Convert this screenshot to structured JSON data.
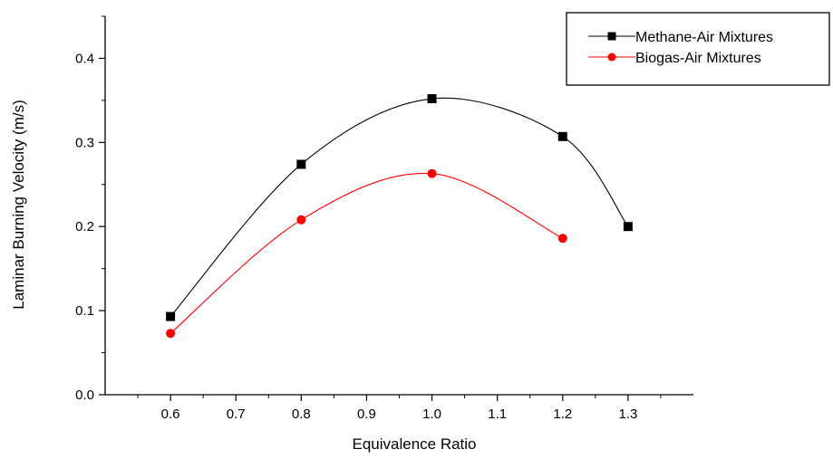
{
  "chart_data": {
    "type": "line",
    "title": "",
    "xlabel": "Equivalence Ratio",
    "ylabel": "Laminar Burning Velocity (m/s)",
    "xlim": [
      0.5,
      1.4
    ],
    "ylim": [
      0.0,
      0.45
    ],
    "x_ticks": [
      0.6,
      0.7,
      0.8,
      0.9,
      1.0,
      1.1,
      1.2,
      1.3
    ],
    "x_tick_labels": [
      "0.6",
      "0.7",
      "0.8",
      "0.9",
      "1.0",
      "1.1",
      "1.2",
      "1.3"
    ],
    "y_ticks": [
      0.0,
      0.1,
      0.2,
      0.3,
      0.4
    ],
    "y_tick_labels": [
      "0.0",
      "0.1",
      "0.2",
      "0.3",
      "0.4"
    ],
    "grid": false,
    "legend_position": "top-right",
    "series": [
      {
        "name": "Methane-Air Mixtures",
        "color": "#000000",
        "marker": "square",
        "x": [
          0.6,
          0.8,
          1.0,
          1.2,
          1.3
        ],
        "y": [
          0.093,
          0.274,
          0.352,
          0.307,
          0.2
        ]
      },
      {
        "name": "Biogas-Air Mixtures",
        "color": "#ff0000",
        "marker": "circle",
        "x": [
          0.6,
          0.8,
          1.0,
          1.2
        ],
        "y": [
          0.073,
          0.208,
          0.263,
          0.186
        ]
      }
    ]
  }
}
